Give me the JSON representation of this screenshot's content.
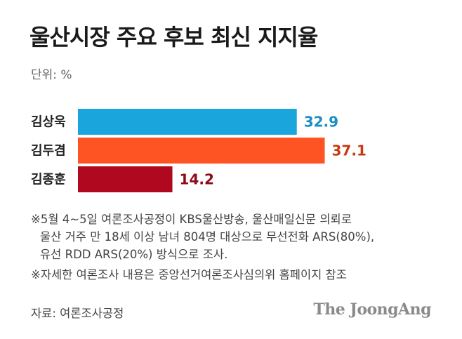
{
  "title": "울산시장 주요 후보 최신 지지율",
  "unit_label": "단위: %",
  "chart_data": {
    "type": "bar",
    "orientation": "horizontal",
    "title": "울산시장 주요 후보 최신 지지율",
    "unit": "%",
    "categories": [
      "김상욱",
      "김두겸",
      "김종훈"
    ],
    "values": [
      32.9,
      37.1,
      14.2
    ],
    "value_labels": [
      "32.9",
      "37.1",
      "14.2"
    ],
    "bar_colors": [
      "#1aa6dc",
      "#fe5323",
      "#b0081e"
    ],
    "label_colors": [
      "#1b8fc4",
      "#c73a12",
      "#8e0a1b"
    ],
    "xlim": [
      0,
      40
    ],
    "grid": false,
    "legend": "none"
  },
  "notes": {
    "line1": "※5월 4~5일 여론조사공정이 KBS울산방송, 울산매일신문 의뢰로",
    "line2": "울산 거주 만 18세 이상 남녀 804명 대상으로 무선전화 ARS(80%),",
    "line3": "유선 RDD ARS(20%) 방식으로 조사.",
    "line4": "※자세한 여론조사 내용은 중앙선거여론조사심의위 홈페이지 참조"
  },
  "source": "자료: 여론조사공정",
  "logo_text": "The JoongAng"
}
